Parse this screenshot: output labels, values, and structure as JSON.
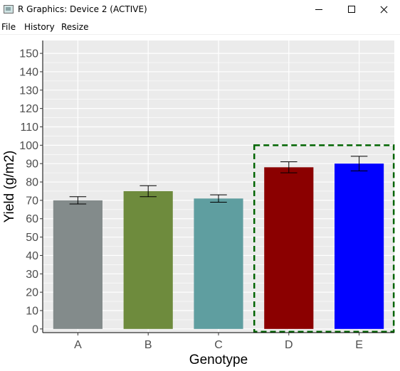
{
  "window": {
    "title": "R Graphics: Device 2 (ACTIVE)"
  },
  "menu": [
    "File",
    "History",
    "Resize"
  ],
  "chart_data": {
    "type": "bar",
    "xlabel": "Genotype",
    "ylabel": "Yield (g/m2)",
    "categories": [
      "A",
      "B",
      "C",
      "D",
      "E"
    ],
    "values": [
      70,
      75,
      71,
      88,
      90
    ],
    "errors": [
      2,
      3,
      2,
      3,
      4
    ],
    "bar_colors": [
      "#838B8B",
      "#6E8B3D",
      "#5F9EA0",
      "#8B0000",
      "#0000FF"
    ],
    "ylim": [
      -2,
      157
    ],
    "yticks": [
      0,
      10,
      20,
      30,
      40,
      50,
      60,
      70,
      80,
      90,
      100,
      110,
      120,
      130,
      140,
      150
    ],
    "grid": true,
    "panel_background": "#EBEBEB",
    "highlight": {
      "categories": [
        "D",
        "E"
      ],
      "y_top": 100,
      "color": "#006400",
      "style": "dashed"
    }
  }
}
